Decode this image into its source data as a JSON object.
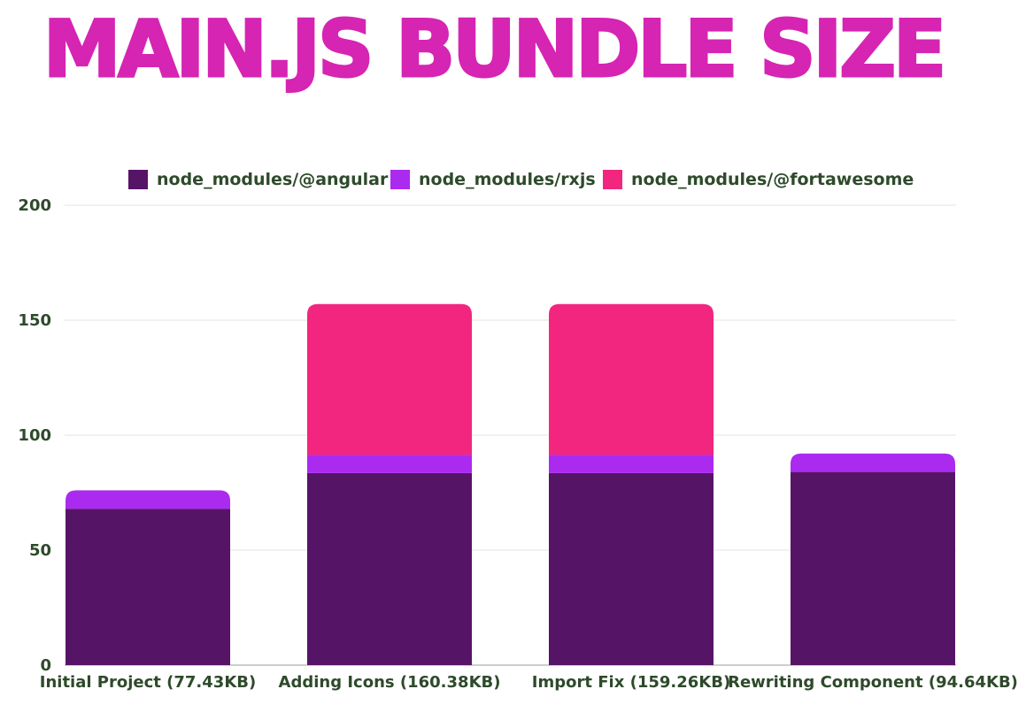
{
  "title": "MAIN.JS BUNDLE SIZE",
  "chart_data": {
    "type": "bar",
    "stacked": true,
    "title": "MAIN.JS BUNDLE SIZE",
    "categories": [
      "Initial Project (77.43KB)",
      "Adding Icons (160.38KB)",
      "Import Fix (159.26KB)",
      "Rewriting Component (94.64KB)"
    ],
    "series": [
      {
        "name": "node_modules/@angular",
        "color": "#561467",
        "values": [
          68,
          83.5,
          83.5,
          84
        ]
      },
      {
        "name": "node_modules/rxjs",
        "color": "#ab2af0",
        "values": [
          8,
          8,
          8,
          8
        ]
      },
      {
        "name": "node_modules/@fortawesome",
        "color": "#f2267e",
        "values": [
          0,
          65.5,
          65.5,
          0
        ]
      }
    ],
    "yticks": [
      0,
      50,
      100,
      150,
      200
    ],
    "ylim": [
      0,
      200
    ],
    "grid": true,
    "legend": "top-center",
    "xlabel": "",
    "ylabel": ""
  }
}
